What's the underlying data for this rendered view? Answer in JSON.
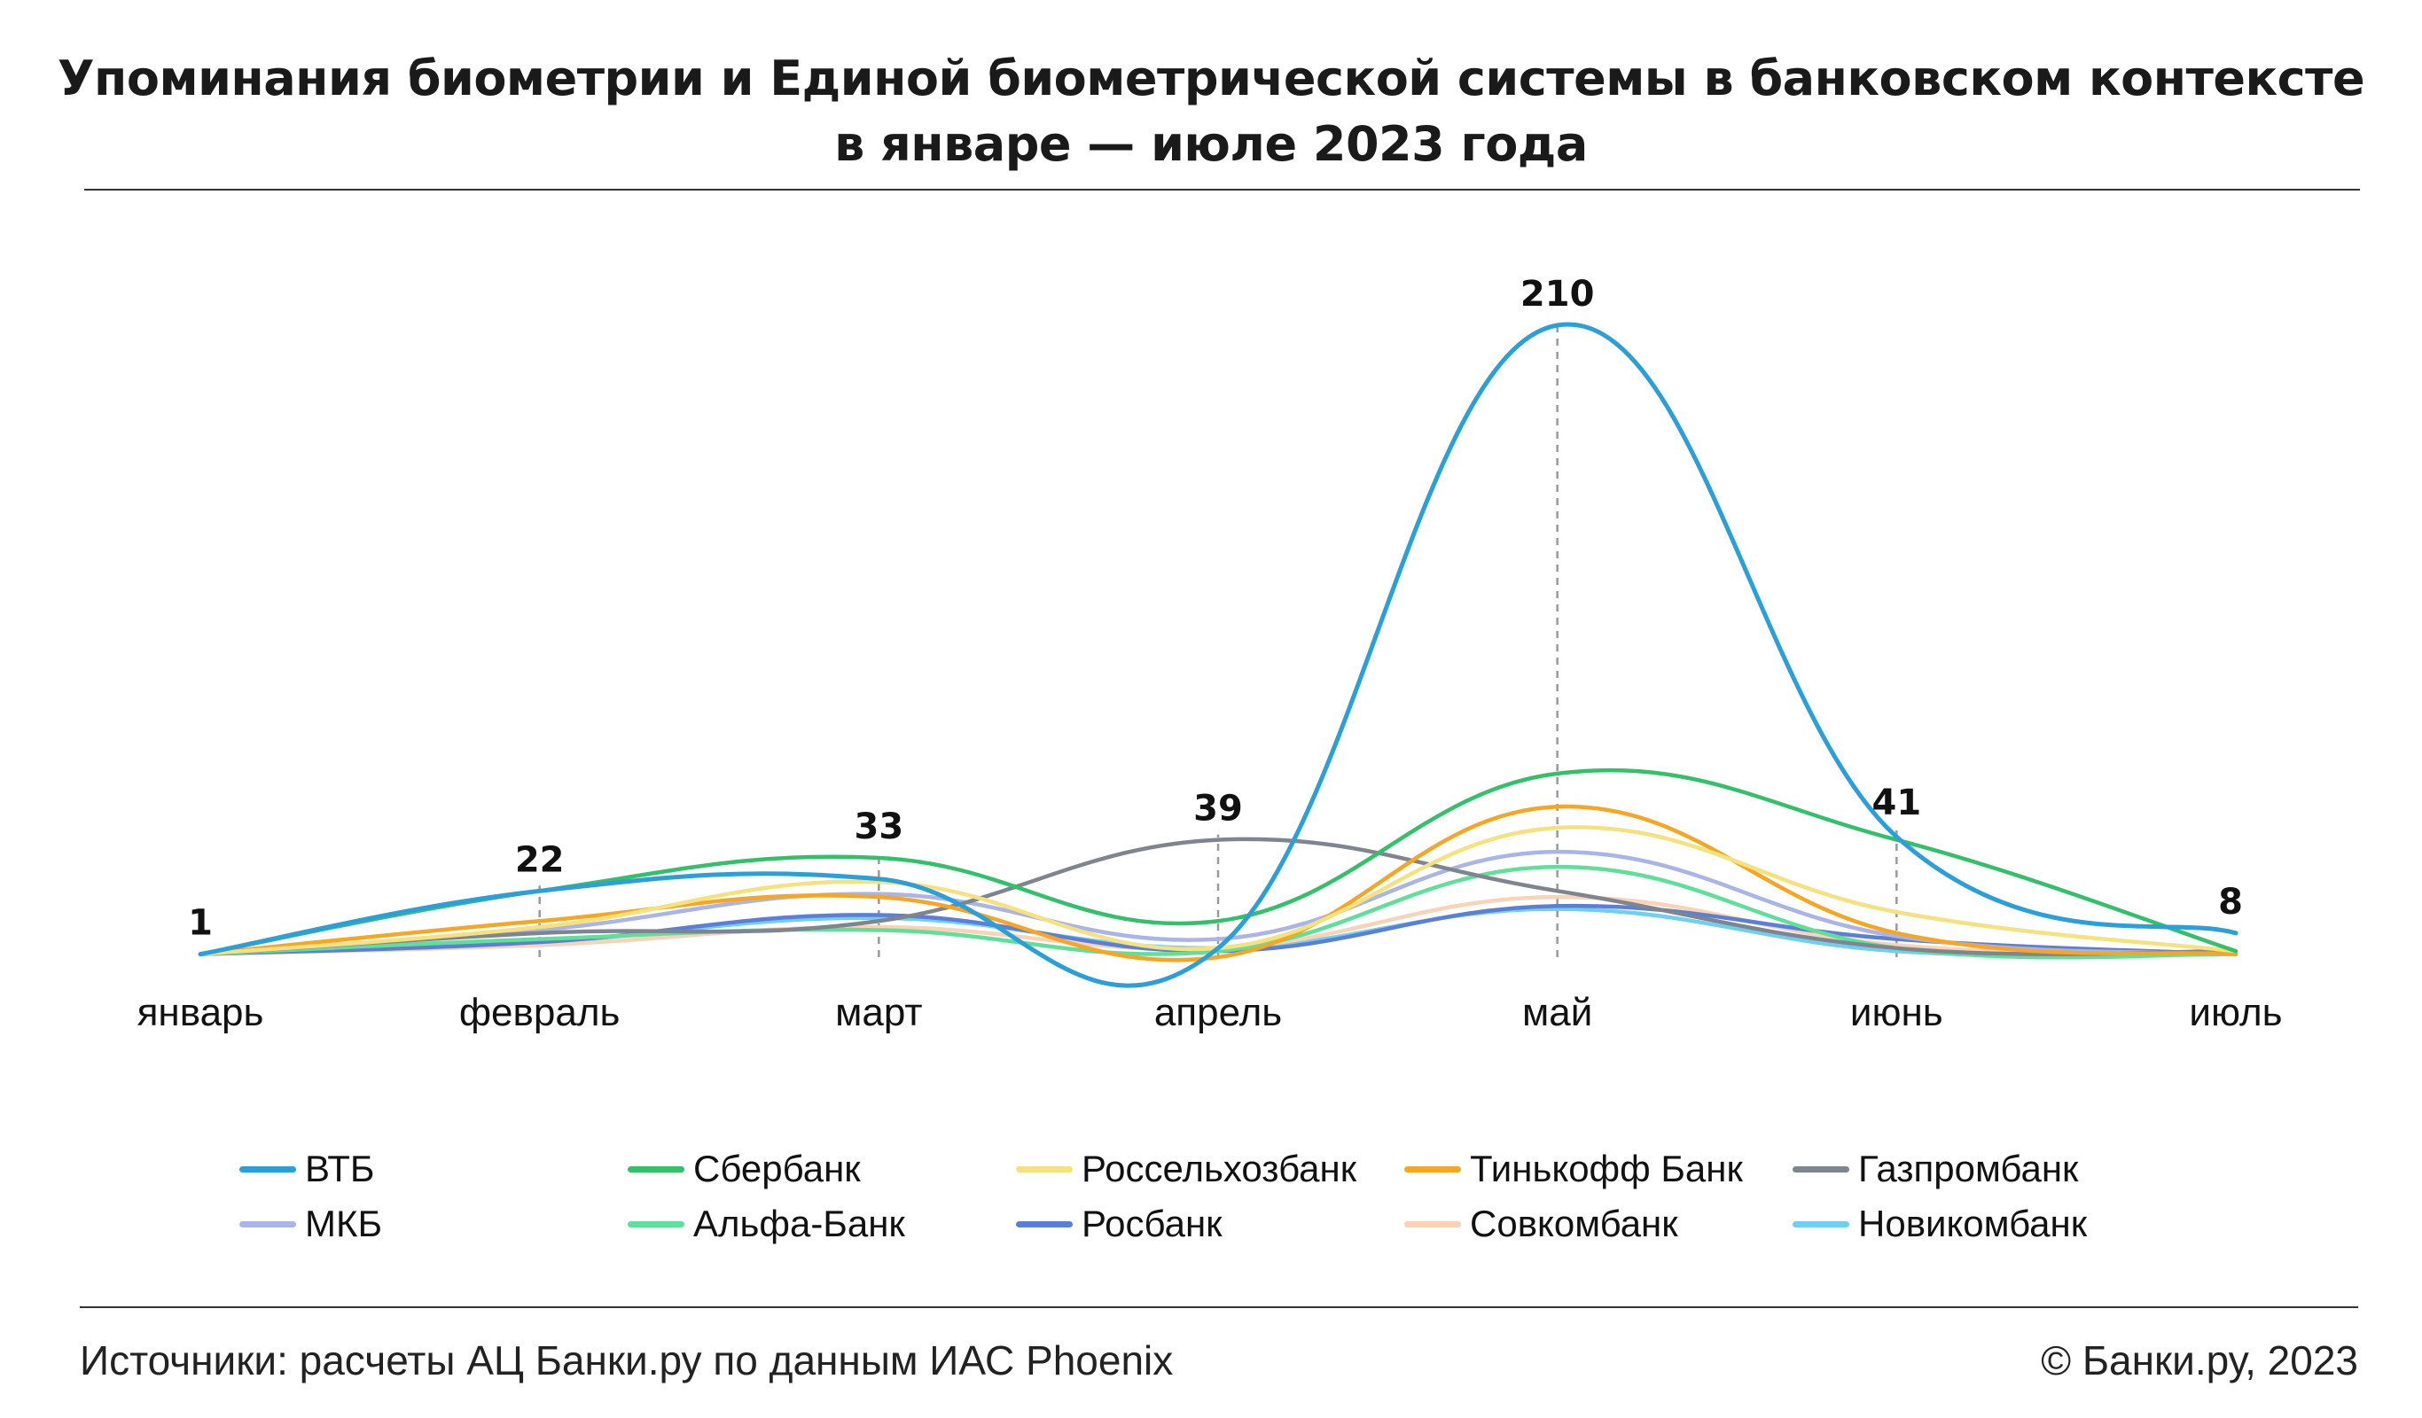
{
  "title": {
    "line1": "Упоминания биометрии и Единой биометрической системы в банковском контексте",
    "line2": "в январе — июле 2023 года"
  },
  "footer": {
    "source": "Источники: расчеты АЦ Банки.ру по данным ИАС Phoenix",
    "copyright": "© Банки.ру, 2023"
  },
  "chart_data": {
    "type": "line",
    "title": "Упоминания биометрии и Единой биометрической системы в банковском контексте в январе — июле 2023 года",
    "categories": [
      "январь",
      "февраль",
      "март",
      "апрель",
      "май",
      "июнь",
      "июль"
    ],
    "ylim": [
      0,
      215
    ],
    "grid": false,
    "legend_position": "bottom",
    "totals": [
      1,
      22,
      33,
      39,
      210,
      41,
      8
    ],
    "series": [
      {
        "name": "ВТБ",
        "color": "#2a9fd8",
        "values": [
          1,
          22,
          26,
          3,
          210,
          40,
          8
        ]
      },
      {
        "name": "Сбербанк",
        "color": "#33c06a",
        "values": [
          1,
          22,
          33,
          12,
          61,
          39,
          2
        ]
      },
      {
        "name": "Россельхозбанк",
        "color": "#f5e27e",
        "values": [
          1,
          10,
          25,
          3,
          43,
          15,
          2
        ]
      },
      {
        "name": "Тинькофф Банк",
        "color": "#f6a623",
        "values": [
          1,
          12,
          20,
          0,
          50,
          8,
          1
        ]
      },
      {
        "name": "Газпромбанк",
        "color": "#7f8590",
        "values": [
          1,
          8,
          12,
          39,
          22,
          3,
          2
        ]
      },
      {
        "name": "МКБ",
        "color": "#a9b4e8",
        "values": [
          1,
          9,
          21,
          6,
          35,
          7,
          1
        ]
      },
      {
        "name": "Альфа-Банк",
        "color": "#5fe09a",
        "values": [
          1,
          6,
          9,
          2,
          30,
          3,
          1
        ]
      },
      {
        "name": "Росбанк",
        "color": "#5b7fd6",
        "values": [
          1,
          5,
          14,
          2,
          17,
          6,
          1
        ]
      },
      {
        "name": "Совкомбанк",
        "color": "#f8d3b6",
        "values": [
          1,
          4,
          10,
          3,
          20,
          4,
          1
        ]
      },
      {
        "name": "Новикомбанк",
        "color": "#6fcff0",
        "values": [
          1,
          5,
          13,
          3,
          16,
          2,
          1
        ]
      }
    ]
  }
}
